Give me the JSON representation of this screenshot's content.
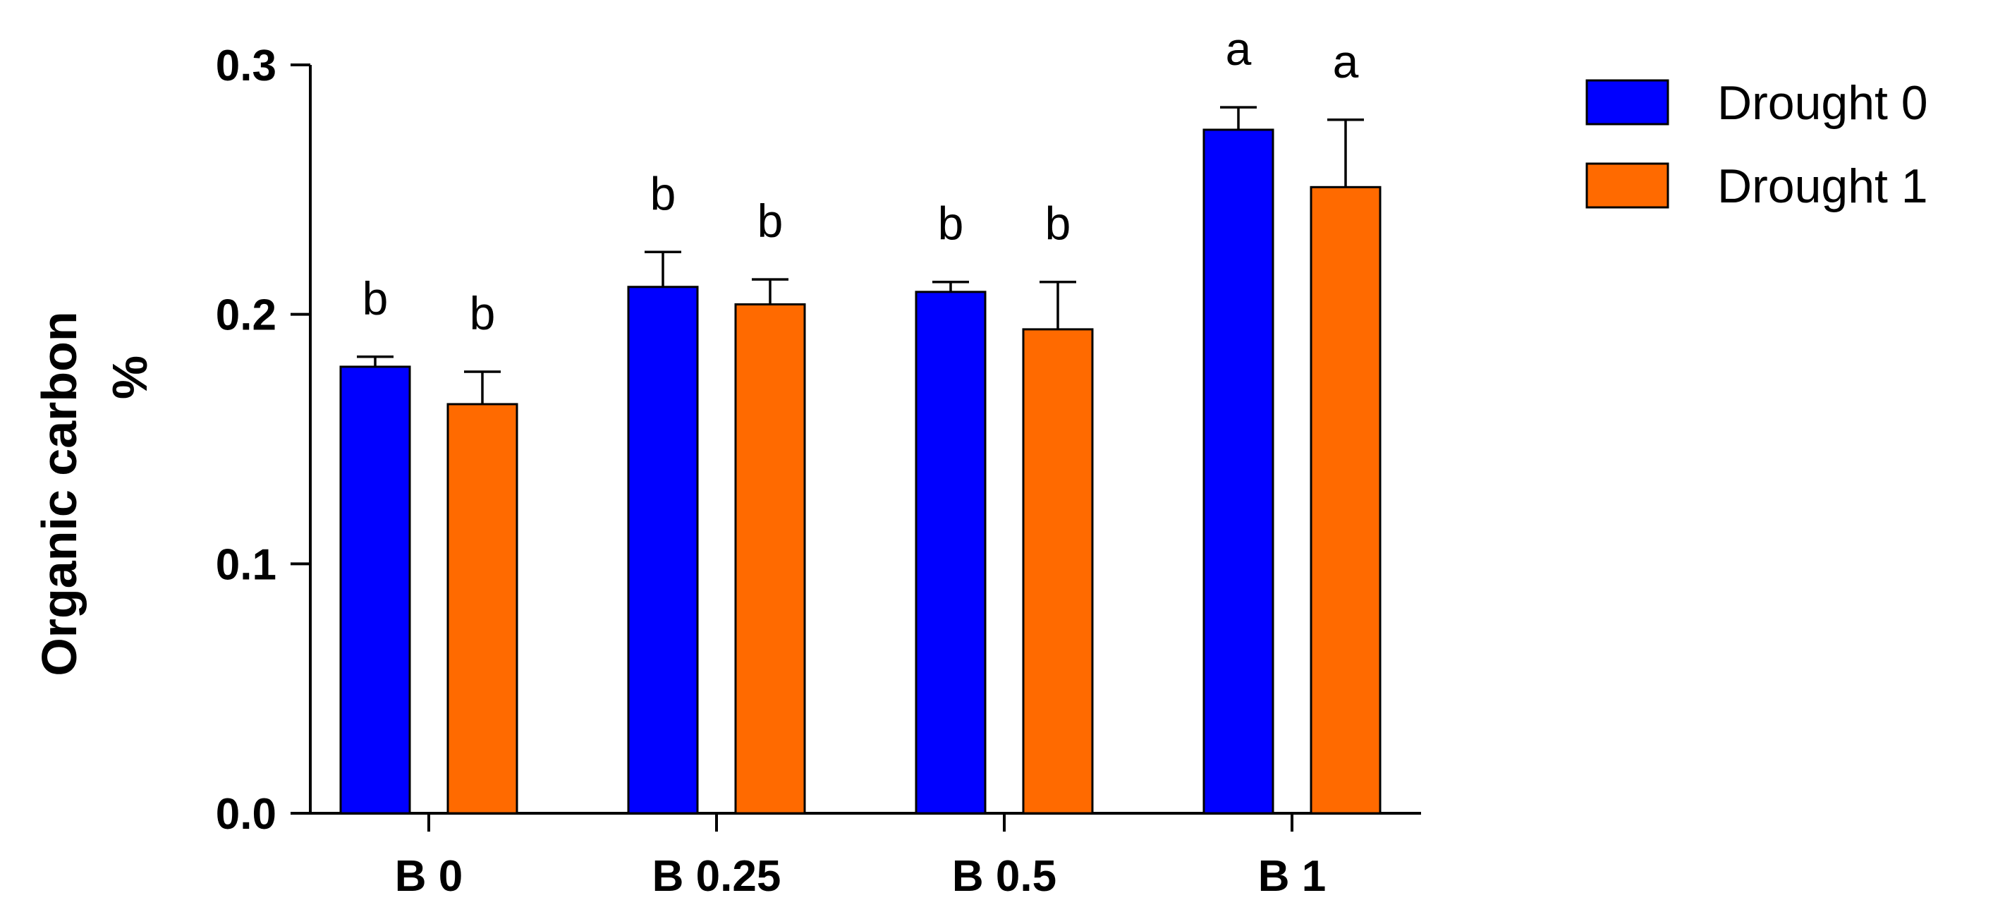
{
  "chart_data": {
    "type": "bar",
    "title": "",
    "xlabel": "",
    "ylabel_lines": [
      "Organic carbon",
      "%"
    ],
    "ylim": [
      0,
      0.3
    ],
    "yticks": [
      "0.0",
      "0.1",
      "0.2",
      "0.3"
    ],
    "ytick_values": [
      0,
      0.1,
      0.2,
      0.3
    ],
    "categories": [
      "B 0",
      "B 0.25",
      "B 0.5",
      "B 1"
    ],
    "series": [
      {
        "name": "Drought 0",
        "color": "#0000ff",
        "values": [
          0.179,
          0.211,
          0.209,
          0.274
        ],
        "errors": [
          0.004,
          0.014,
          0.004,
          0.009
        ],
        "letters": [
          "b",
          "b",
          "b",
          "a"
        ]
      },
      {
        "name": "Drought 1",
        "color": "#ff6a00",
        "values": [
          0.164,
          0.204,
          0.194,
          0.251
        ],
        "errors": [
          0.013,
          0.01,
          0.019,
          0.027
        ],
        "letters": [
          "b",
          "b",
          "b",
          "a"
        ]
      }
    ],
    "grid": false,
    "legend_position": "right"
  }
}
